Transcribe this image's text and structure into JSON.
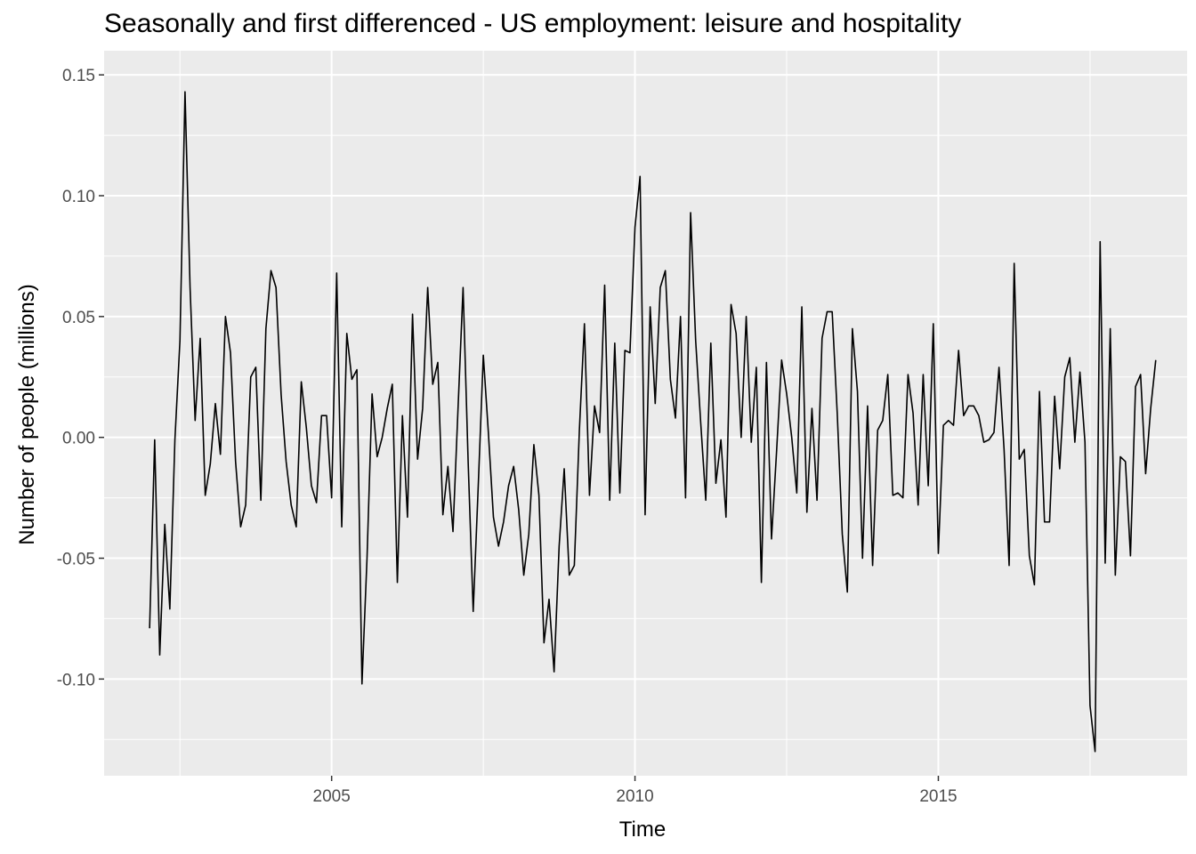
{
  "chart_data": {
    "type": "line",
    "title": "Seasonally and first differenced - US employment: leisure and hospitality",
    "xlabel": "Time",
    "ylabel": "Number of people (millions)",
    "xlim": [
      2001.25,
      2019.1
    ],
    "ylim": [
      -0.14,
      0.16
    ],
    "x_ticks": [
      2005,
      2010,
      2015
    ],
    "x_tick_labels": [
      "2005",
      "2010",
      "2015"
    ],
    "y_ticks": [
      -0.1,
      -0.05,
      0.0,
      0.05,
      0.1,
      0.15
    ],
    "y_tick_labels": [
      "-0.10",
      "-0.05",
      "0.00",
      "0.05",
      "0.10",
      "0.15"
    ],
    "grid": true,
    "panel_background": "#ebebeb",
    "grid_color": "#ffffff",
    "line_color": "#000000",
    "x_start": 2002.0,
    "x_step": 0.083333,
    "series": [
      {
        "values": [
          -0.079,
          -0.001,
          -0.09,
          -0.036,
          -0.071,
          -0.001,
          0.04,
          0.143,
          0.062,
          0.007,
          0.041,
          -0.024,
          -0.011,
          0.014,
          -0.007,
          0.05,
          0.035,
          -0.01,
          -0.037,
          -0.028,
          0.025,
          0.029,
          -0.026,
          0.045,
          0.069,
          0.062,
          0.018,
          -0.01,
          -0.028,
          -0.037,
          0.023,
          0.004,
          -0.02,
          -0.027,
          0.009,
          0.009,
          -0.025,
          0.068,
          -0.037,
          0.043,
          0.024,
          0.028,
          -0.102,
          -0.05,
          0.018,
          -0.008,
          0.0,
          0.012,
          0.022,
          -0.06,
          0.009,
          -0.033,
          0.051,
          -0.009,
          0.012,
          0.062,
          0.022,
          0.031,
          -0.032,
          -0.012,
          -0.039,
          0.012,
          0.062,
          -0.01,
          -0.072,
          -0.02,
          0.034,
          0.002,
          -0.033,
          -0.045,
          -0.035,
          -0.02,
          -0.012,
          -0.03,
          -0.057,
          -0.04,
          -0.003,
          -0.024,
          -0.085,
          -0.067,
          -0.097,
          -0.045,
          -0.013,
          -0.057,
          -0.053,
          0.003,
          0.047,
          -0.024,
          0.013,
          0.002,
          0.063,
          -0.026,
          0.039,
          -0.023,
          0.036,
          0.035,
          0.087,
          0.108,
          -0.032,
          0.054,
          0.014,
          0.062,
          0.069,
          0.024,
          0.008,
          0.05,
          -0.025,
          0.093,
          0.04,
          0.006,
          -0.026,
          0.039,
          -0.019,
          -0.001,
          -0.033,
          0.055,
          0.043,
          0.0,
          0.05,
          -0.002,
          0.029,
          -0.06,
          0.031,
          -0.042,
          -0.006,
          0.032,
          0.018,
          0.0,
          -0.023,
          0.054,
          -0.031,
          0.012,
          -0.026,
          0.041,
          0.052,
          0.052,
          0.01,
          -0.04,
          -0.064,
          0.045,
          0.019,
          -0.05,
          0.013,
          -0.053,
          0.003,
          0.007,
          0.026,
          -0.024,
          -0.023,
          -0.025,
          0.026,
          0.01,
          -0.028,
          0.026,
          -0.02,
          0.047,
          -0.048,
          0.005,
          0.007,
          0.005,
          0.036,
          0.009,
          0.013,
          0.013,
          0.009,
          -0.002,
          -0.001,
          0.002,
          0.029,
          -0.005,
          -0.053,
          0.072,
          -0.009,
          -0.005,
          -0.049,
          -0.061,
          0.019,
          -0.035,
          -0.035,
          0.017,
          -0.013,
          0.025,
          0.033,
          -0.002,
          0.027,
          -0.002,
          -0.111,
          -0.13,
          0.081,
          -0.052,
          0.045,
          -0.057,
          -0.008,
          -0.01,
          -0.049,
          0.021,
          0.026,
          -0.015,
          0.012,
          0.032
        ]
      }
    ]
  }
}
